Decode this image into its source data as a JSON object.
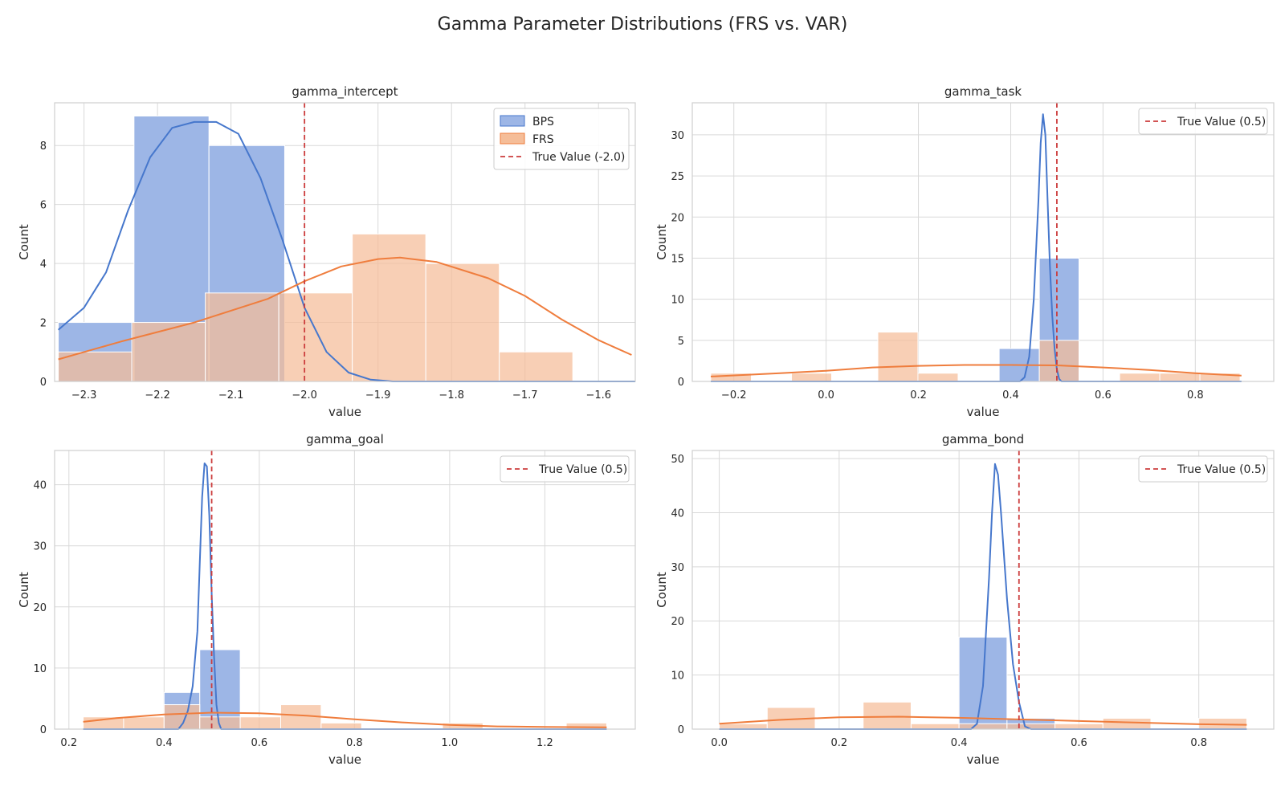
{
  "figure_title": "Gamma Parameter Distributions (FRS vs. VAR)",
  "colors": {
    "bps_fill": "#9db6e6",
    "bps_line": "#4677cc",
    "frs_fill": "#f5bd98",
    "frs_line": "#ef7d3d",
    "true_line": "#cc3d3d",
    "grid": "#d9d9d9",
    "axes_edge": "#cfcfcf"
  },
  "chart_data": [
    {
      "type": "histogram",
      "title": "gamma_intercept",
      "xlabel": "value",
      "ylabel": "Count",
      "xlim": [
        -2.34,
        -1.55
      ],
      "ylim": [
        0,
        9.45
      ],
      "xticks": [
        -2.3,
        -2.2,
        -2.1,
        -2.0,
        -1.9,
        -1.8,
        -1.7,
        -1.6
      ],
      "xtick_labels": [
        "−2.3",
        "−2.2",
        "−2.1",
        "−2.0",
        "−1.9",
        "−1.8",
        "−1.7",
        "−1.6"
      ],
      "yticks": [
        0,
        2,
        4,
        6,
        8
      ],
      "ytick_labels": [
        "0",
        "2",
        "4",
        "6",
        "8"
      ],
      "grid": true,
      "legend": {
        "location": "upper right",
        "entries": [
          {
            "label": "BPS",
            "kind": "patch",
            "series": "bps"
          },
          {
            "label": "FRS",
            "kind": "patch",
            "series": "frs"
          },
          {
            "label": "True Value (-2.0)",
            "kind": "dashed",
            "series": "true"
          }
        ]
      },
      "true_value": -2.0,
      "series": [
        {
          "name": "BPS",
          "key": "bps",
          "bins": [
            [
              -2.335,
              -2.232,
              2
            ],
            [
              -2.232,
              -2.13,
              9
            ],
            [
              -2.13,
              -2.027,
              8
            ]
          ],
          "kde": [
            [
              -2.335,
              1.75
            ],
            [
              -2.3,
              2.5
            ],
            [
              -2.27,
              3.7
            ],
            [
              -2.24,
              5.8
            ],
            [
              -2.21,
              7.6
            ],
            [
              -2.18,
              8.6
            ],
            [
              -2.15,
              8.8
            ],
            [
              -2.12,
              8.8
            ],
            [
              -2.09,
              8.4
            ],
            [
              -2.06,
              6.9
            ],
            [
              -2.03,
              4.8
            ],
            [
              -2.0,
              2.5
            ],
            [
              -1.97,
              1.0
            ],
            [
              -1.94,
              0.3
            ],
            [
              -1.91,
              0.06
            ],
            [
              -1.88,
              0.0
            ],
            [
              -1.55,
              0.0
            ]
          ]
        },
        {
          "name": "FRS",
          "key": "frs",
          "bins": [
            [
              -2.335,
              -2.235,
              1
            ],
            [
              -2.235,
              -2.135,
              2
            ],
            [
              -2.135,
              -2.035,
              3
            ],
            [
              -2.035,
              -1.935,
              3
            ],
            [
              -1.935,
              -1.835,
              5
            ],
            [
              -1.835,
              -1.735,
              4
            ],
            [
              -1.735,
              -1.635,
              1
            ]
          ],
          "kde": [
            [
              -2.335,
              0.75
            ],
            [
              -2.25,
              1.35
            ],
            [
              -2.15,
              2.0
            ],
            [
              -2.05,
              2.8
            ],
            [
              -2.0,
              3.4
            ],
            [
              -1.95,
              3.9
            ],
            [
              -1.9,
              4.15
            ],
            [
              -1.87,
              4.2
            ],
            [
              -1.82,
              4.05
            ],
            [
              -1.75,
              3.5
            ],
            [
              -1.7,
              2.9
            ],
            [
              -1.65,
              2.1
            ],
            [
              -1.6,
              1.4
            ],
            [
              -1.555,
              0.9
            ]
          ]
        }
      ]
    },
    {
      "type": "histogram",
      "title": "gamma_task",
      "xlabel": "value",
      "ylabel": "Count",
      "xlim": [
        -0.29,
        0.97
      ],
      "ylim": [
        0,
        33.9
      ],
      "xticks": [
        -0.2,
        0.0,
        0.2,
        0.4,
        0.6,
        0.8
      ],
      "xtick_labels": [
        "−0.2",
        "0.0",
        "0.2",
        "0.4",
        "0.6",
        "0.8"
      ],
      "yticks": [
        0,
        5,
        10,
        15,
        20,
        25,
        30
      ],
      "ytick_labels": [
        "0",
        "5",
        "10",
        "15",
        "20",
        "25",
        "30"
      ],
      "grid": true,
      "legend": {
        "location": "upper right",
        "entries": [
          {
            "label": "True Value (0.5)",
            "kind": "dashed",
            "series": "true"
          }
        ]
      },
      "true_value": 0.5,
      "series": [
        {
          "name": "",
          "key": "bps",
          "bins": [
            [
              0.375,
              0.462,
              4
            ],
            [
              0.462,
              0.548,
              15
            ]
          ],
          "kde": [
            [
              -0.25,
              0.0
            ],
            [
              0.42,
              0.0
            ],
            [
              0.43,
              0.5
            ],
            [
              0.44,
              3.0
            ],
            [
              0.45,
              10.0
            ],
            [
              0.46,
              22.0
            ],
            [
              0.465,
              29.0
            ],
            [
              0.47,
              32.5
            ],
            [
              0.475,
              30.0
            ],
            [
              0.48,
              22.0
            ],
            [
              0.485,
              14.0
            ],
            [
              0.49,
              8.0
            ],
            [
              0.495,
              4.0
            ],
            [
              0.5,
              1.5
            ],
            [
              0.505,
              0.3
            ],
            [
              0.51,
              0.0
            ],
            [
              0.9,
              0.0
            ]
          ]
        },
        {
          "name": "",
          "key": "frs",
          "bins": [
            [
              -0.25,
              -0.162,
              1
            ],
            [
              -0.075,
              0.012,
              1
            ],
            [
              0.112,
              0.199,
              6
            ],
            [
              0.199,
              0.286,
              1
            ],
            [
              0.462,
              0.548,
              5
            ],
            [
              0.636,
              0.723,
              1
            ],
            [
              0.723,
              0.81,
              1
            ],
            [
              0.81,
              0.897,
              1
            ]
          ],
          "kde": [
            [
              -0.25,
              0.6
            ],
            [
              -0.1,
              1.0
            ],
            [
              0.0,
              1.3
            ],
            [
              0.1,
              1.7
            ],
            [
              0.2,
              1.9
            ],
            [
              0.3,
              2.0
            ],
            [
              0.4,
              2.0
            ],
            [
              0.5,
              1.95
            ],
            [
              0.6,
              1.7
            ],
            [
              0.7,
              1.4
            ],
            [
              0.8,
              1.0
            ],
            [
              0.9,
              0.7
            ]
          ]
        }
      ]
    },
    {
      "type": "histogram",
      "title": "gamma_goal",
      "xlabel": "value",
      "ylabel": "Count",
      "xlim": [
        0.17,
        1.39
      ],
      "ylim": [
        0,
        45.6
      ],
      "xticks": [
        0.2,
        0.4,
        0.6,
        0.8,
        1.0,
        1.2
      ],
      "xtick_labels": [
        "0.2",
        "0.4",
        "0.6",
        "0.8",
        "1.0",
        "1.2"
      ],
      "yticks": [
        0,
        10,
        20,
        30,
        40
      ],
      "ytick_labels": [
        "0",
        "10",
        "20",
        "30",
        "40"
      ],
      "grid": true,
      "legend": {
        "location": "upper right",
        "entries": [
          {
            "label": "True Value (0.5)",
            "kind": "dashed",
            "series": "true"
          }
        ]
      },
      "true_value": 0.5,
      "series": [
        {
          "name": "",
          "key": "bps",
          "bins": [
            [
              0.4,
              0.475,
              6
            ],
            [
              0.475,
              0.56,
              13
            ]
          ],
          "kde": [
            [
              0.23,
              0.0
            ],
            [
              0.43,
              0.0
            ],
            [
              0.44,
              1.0
            ],
            [
              0.45,
              3.0
            ],
            [
              0.46,
              7.0
            ],
            [
              0.47,
              16.0
            ],
            [
              0.475,
              27.0
            ],
            [
              0.48,
              38.0
            ],
            [
              0.485,
              43.5
            ],
            [
              0.49,
              43.0
            ],
            [
              0.495,
              35.0
            ],
            [
              0.5,
              22.0
            ],
            [
              0.505,
              12.0
            ],
            [
              0.51,
              4.0
            ],
            [
              0.515,
              1.0
            ],
            [
              0.52,
              0.0
            ],
            [
              1.33,
              0.0
            ]
          ]
        },
        {
          "name": "",
          "key": "frs",
          "bins": [
            [
              0.23,
              0.315,
              2
            ],
            [
              0.315,
              0.4,
              2
            ],
            [
              0.4,
              0.475,
              4
            ],
            [
              0.475,
              0.56,
              2
            ],
            [
              0.56,
              0.645,
              2
            ],
            [
              0.645,
              0.73,
              4
            ],
            [
              0.73,
              0.815,
              1
            ],
            [
              0.985,
              1.07,
              1
            ],
            [
              1.245,
              1.33,
              1
            ]
          ],
          "kde": [
            [
              0.23,
              1.2
            ],
            [
              0.3,
              1.8
            ],
            [
              0.4,
              2.4
            ],
            [
              0.5,
              2.7
            ],
            [
              0.6,
              2.6
            ],
            [
              0.7,
              2.2
            ],
            [
              0.8,
              1.6
            ],
            [
              0.9,
              1.1
            ],
            [
              1.0,
              0.7
            ],
            [
              1.1,
              0.45
            ],
            [
              1.2,
              0.35
            ],
            [
              1.33,
              0.3
            ]
          ]
        }
      ]
    },
    {
      "type": "histogram",
      "title": "gamma_bond",
      "xlabel": "value",
      "ylabel": "Count",
      "xlim": [
        -0.045,
        0.925
      ],
      "ylim": [
        0,
        51.5
      ],
      "xticks": [
        0.0,
        0.2,
        0.4,
        0.6,
        0.8
      ],
      "xtick_labels": [
        "0.0",
        "0.2",
        "0.4",
        "0.6",
        "0.8"
      ],
      "yticks": [
        0,
        10,
        20,
        30,
        40,
        50
      ],
      "ytick_labels": [
        "0",
        "10",
        "20",
        "30",
        "40",
        "50"
      ],
      "grid": true,
      "legend": {
        "location": "upper right",
        "entries": [
          {
            "label": "True Value (0.5)",
            "kind": "dashed",
            "series": "true"
          }
        ]
      },
      "true_value": 0.5,
      "series": [
        {
          "name": "",
          "key": "bps",
          "bins": [
            [
              0.4,
              0.48,
              17
            ],
            [
              0.48,
              0.56,
              2
            ]
          ],
          "kde": [
            [
              0.0,
              0.0
            ],
            [
              0.42,
              0.0
            ],
            [
              0.43,
              1.0
            ],
            [
              0.44,
              8.0
            ],
            [
              0.45,
              28.0
            ],
            [
              0.455,
              40.0
            ],
            [
              0.46,
              49.0
            ],
            [
              0.465,
              47.0
            ],
            [
              0.47,
              40.0
            ],
            [
              0.48,
              24.0
            ],
            [
              0.49,
              12.0
            ],
            [
              0.5,
              5.0
            ],
            [
              0.51,
              0.5
            ],
            [
              0.52,
              0.0
            ],
            [
              0.88,
              0.0
            ]
          ]
        },
        {
          "name": "",
          "key": "frs",
          "bins": [
            [
              0.0,
              0.08,
              1
            ],
            [
              0.08,
              0.16,
              4
            ],
            [
              0.24,
              0.32,
              5
            ],
            [
              0.32,
              0.4,
              1
            ],
            [
              0.4,
              0.48,
              1
            ],
            [
              0.48,
              0.56,
              1
            ],
            [
              0.56,
              0.64,
              1
            ],
            [
              0.64,
              0.72,
              2
            ],
            [
              0.8,
              0.88,
              2
            ]
          ],
          "kde": [
            [
              0.0,
              1.0
            ],
            [
              0.1,
              1.7
            ],
            [
              0.2,
              2.2
            ],
            [
              0.3,
              2.3
            ],
            [
              0.4,
              2.1
            ],
            [
              0.5,
              1.8
            ],
            [
              0.6,
              1.5
            ],
            [
              0.7,
              1.2
            ],
            [
              0.8,
              0.9
            ],
            [
              0.88,
              0.8
            ]
          ]
        }
      ]
    }
  ]
}
